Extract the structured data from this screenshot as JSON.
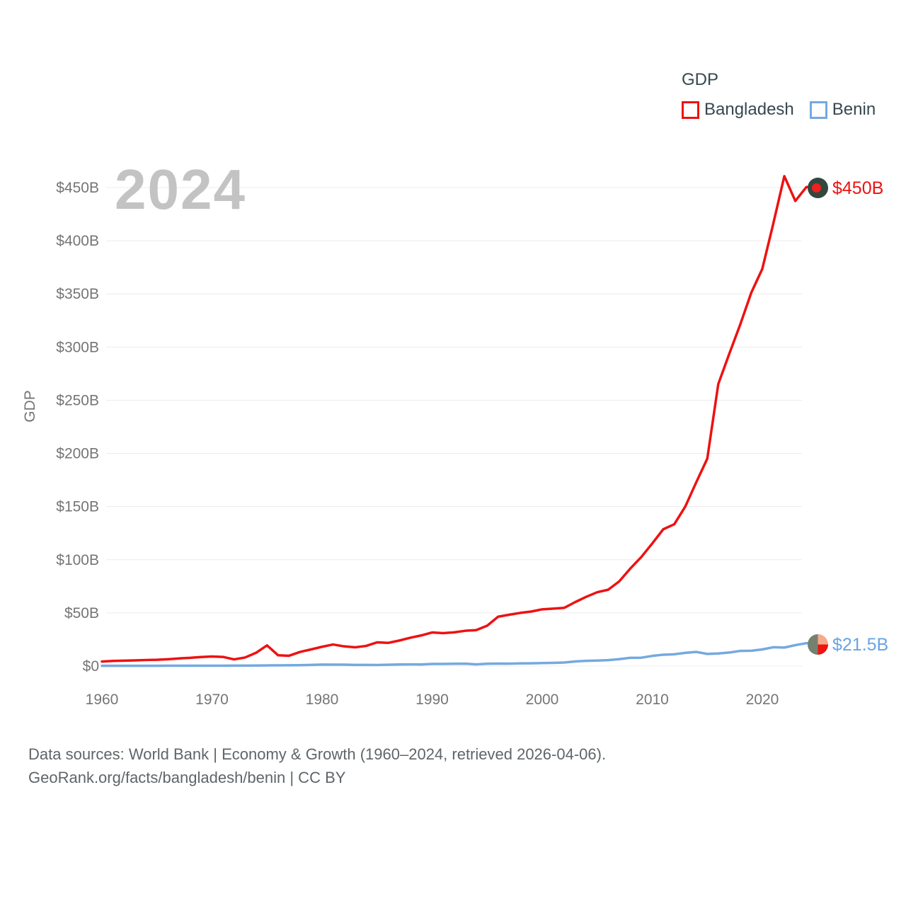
{
  "watermark": "2024",
  "legend": {
    "title": "GDP",
    "items": [
      {
        "label": "Bangladesh",
        "color": "#ee1111"
      },
      {
        "label": "Benin",
        "color": "#74a9e0"
      }
    ]
  },
  "axes": {
    "y_label": "GDP",
    "y_ticks": [
      "$0",
      "$50B",
      "$100B",
      "$150B",
      "$200B",
      "$250B",
      "$300B",
      "$350B",
      "$400B",
      "$450B"
    ],
    "x_ticks": [
      "1960",
      "1970",
      "1980",
      "1990",
      "2000",
      "2010",
      "2020"
    ]
  },
  "end_labels": {
    "bangladesh": {
      "text": "$450B",
      "color": "#ee1111"
    },
    "benin": {
      "text": "$21.5B",
      "color": "#68a5e3"
    }
  },
  "flags": {
    "bangladesh": {
      "field": "#33473f",
      "disc": "#ee2020"
    },
    "benin": {
      "left": "#75816e",
      "top_right": "#f6aa8b",
      "bottom_right": "#ee1410"
    }
  },
  "footer": {
    "line1": "Data sources: World Bank | Economy & Growth (1960–2024, retrieved 2026-04-06).",
    "line2": "GeoRank.org/facts/bangladesh/benin | CC BY"
  },
  "chart_data": {
    "type": "line",
    "title": "GDP",
    "unit": "USD billions",
    "xlabel": "",
    "ylabel": "GDP",
    "xlim": [
      1960,
      2024
    ],
    "ylim": [
      0,
      450
    ],
    "y_tick_step": 50,
    "grid": true,
    "legend_position": "top-right",
    "x": [
      1960,
      1961,
      1962,
      1963,
      1964,
      1965,
      1966,
      1967,
      1968,
      1969,
      1970,
      1971,
      1972,
      1973,
      1974,
      1975,
      1976,
      1977,
      1978,
      1979,
      1980,
      1981,
      1982,
      1983,
      1984,
      1985,
      1986,
      1987,
      1988,
      1989,
      1990,
      1991,
      1992,
      1993,
      1994,
      1995,
      1996,
      1997,
      1998,
      1999,
      2000,
      2001,
      2002,
      2003,
      2004,
      2005,
      2006,
      2007,
      2008,
      2009,
      2010,
      2011,
      2012,
      2013,
      2014,
      2015,
      2016,
      2017,
      2018,
      2019,
      2020,
      2021,
      2022,
      2023,
      2024
    ],
    "series": [
      {
        "name": "Bangladesh",
        "color": "#ee1111",
        "end_value_label": "$450B",
        "values": [
          4.27,
          4.81,
          5.08,
          5.32,
          5.7,
          5.91,
          6.44,
          7.18,
          7.71,
          8.47,
          8.99,
          8.6,
          6.29,
          8.02,
          12.46,
          19.45,
          10.17,
          9.68,
          13.29,
          15.65,
          18.14,
          20.25,
          18.53,
          17.62,
          18.93,
          22.31,
          21.77,
          23.97,
          26.58,
          28.78,
          31.6,
          30.96,
          31.71,
          33.17,
          33.77,
          37.94,
          46.44,
          48.24,
          49.98,
          51.27,
          53.37,
          53.99,
          54.72,
          60.16,
          65.11,
          69.44,
          71.82,
          79.61,
          91.63,
          102.48,
          115.28,
          128.64,
          133.36,
          149.99,
          172.89,
          195.08,
          265.24,
          293.75,
          321.38,
          351.24,
          373.56,
          416.26,
          460.75,
          437.42,
          450.47
        ]
      },
      {
        "name": "Benin",
        "color": "#74a9e0",
        "end_value_label": "$21.5B",
        "values": [
          0.23,
          0.24,
          0.24,
          0.25,
          0.27,
          0.29,
          0.3,
          0.32,
          0.34,
          0.36,
          0.33,
          0.35,
          0.38,
          0.44,
          0.51,
          0.62,
          0.65,
          0.72,
          0.86,
          1.07,
          1.4,
          1.29,
          1.29,
          1.09,
          1.05,
          1.04,
          1.27,
          1.52,
          1.62,
          1.51,
          1.96,
          1.99,
          2.14,
          2.28,
          1.6,
          2.17,
          2.36,
          2.27,
          2.46,
          2.58,
          2.8,
          2.99,
          3.3,
          4.3,
          4.87,
          5.14,
          5.54,
          6.46,
          7.78,
          7.85,
          9.54,
          10.69,
          11.1,
          12.42,
          13.29,
          11.39,
          11.82,
          12.7,
          14.26,
          14.39,
          15.65,
          17.69,
          17.4,
          19.67,
          21.5
        ]
      }
    ]
  }
}
